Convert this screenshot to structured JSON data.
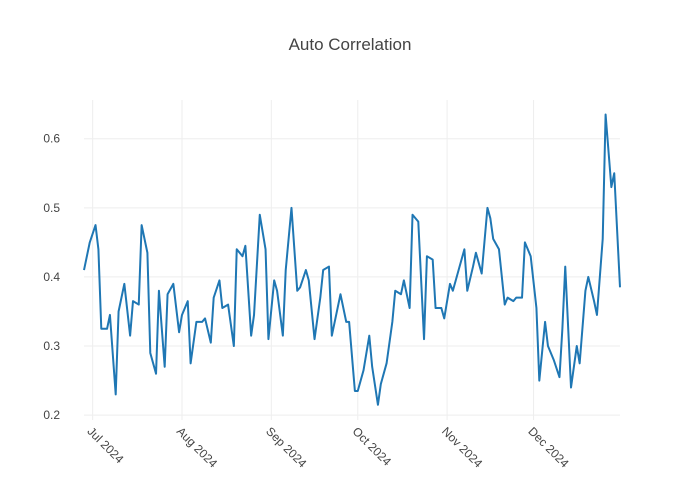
{
  "chart_data": {
    "type": "line",
    "title": "Auto Correlation",
    "x": [
      "2024-06-28",
      "2024-06-30",
      "2024-07-02",
      "2024-07-03",
      "2024-07-04",
      "2024-07-06",
      "2024-07-07",
      "2024-07-09",
      "2024-07-10",
      "2024-07-12",
      "2024-07-14",
      "2024-07-15",
      "2024-07-17",
      "2024-07-18",
      "2024-07-20",
      "2024-07-21",
      "2024-07-23",
      "2024-07-24",
      "2024-07-26",
      "2024-07-27",
      "2024-07-29",
      "2024-07-31",
      "2024-08-01",
      "2024-08-03",
      "2024-08-04",
      "2024-08-06",
      "2024-08-08",
      "2024-08-09",
      "2024-08-11",
      "2024-08-12",
      "2024-08-14",
      "2024-08-15",
      "2024-08-17",
      "2024-08-19",
      "2024-08-20",
      "2024-08-22",
      "2024-08-23",
      "2024-08-25",
      "2024-08-26",
      "2024-08-28",
      "2024-08-30",
      "2024-08-31",
      "2024-09-02",
      "2024-09-03",
      "2024-09-05",
      "2024-09-06",
      "2024-09-08",
      "2024-09-10",
      "2024-09-11",
      "2024-09-13",
      "2024-09-14",
      "2024-09-16",
      "2024-09-18",
      "2024-09-19",
      "2024-09-21",
      "2024-09-22",
      "2024-09-24",
      "2024-09-25",
      "2024-09-27",
      "2024-09-28",
      "2024-09-30",
      "2024-10-01",
      "2024-10-03",
      "2024-10-05",
      "2024-10-06",
      "2024-10-08",
      "2024-10-09",
      "2024-10-11",
      "2024-10-13",
      "2024-10-14",
      "2024-10-16",
      "2024-10-17",
      "2024-10-19",
      "2024-10-20",
      "2024-10-22",
      "2024-10-24",
      "2024-10-25",
      "2024-10-27",
      "2024-10-28",
      "2024-10-30",
      "2024-10-31",
      "2024-11-02",
      "2024-11-03",
      "2024-11-05",
      "2024-11-07",
      "2024-11-08",
      "2024-11-10",
      "2024-11-11",
      "2024-11-13",
      "2024-11-15",
      "2024-11-16",
      "2024-11-17",
      "2024-11-19",
      "2024-11-21",
      "2024-11-22",
      "2024-11-24",
      "2024-11-25",
      "2024-11-27",
      "2024-11-28",
      "2024-11-30",
      "2024-12-02",
      "2024-12-03",
      "2024-12-05",
      "2024-12-06",
      "2024-12-08",
      "2024-12-10",
      "2024-12-11",
      "2024-12-12",
      "2024-12-14",
      "2024-12-16",
      "2024-12-17",
      "2024-12-19",
      "2024-12-20",
      "2024-12-22",
      "2024-12-23",
      "2024-12-25",
      "2024-12-26",
      "2024-12-28",
      "2024-12-29",
      "2024-12-31"
    ],
    "series": [
      {
        "color": "#1f77b4",
        "values": [
          0.41,
          0.45,
          0.475,
          0.44,
          0.325,
          0.325,
          0.345,
          0.23,
          0.35,
          0.39,
          0.315,
          0.365,
          0.36,
          0.475,
          0.435,
          0.29,
          0.26,
          0.38,
          0.27,
          0.375,
          0.39,
          0.32,
          0.345,
          0.365,
          0.275,
          0.335,
          0.335,
          0.34,
          0.305,
          0.37,
          0.395,
          0.355,
          0.36,
          0.3,
          0.44,
          0.43,
          0.445,
          0.315,
          0.345,
          0.49,
          0.44,
          0.31,
          0.395,
          0.38,
          0.315,
          0.41,
          0.5,
          0.38,
          0.385,
          0.41,
          0.395,
          0.31,
          0.37,
          0.41,
          0.415,
          0.315,
          0.355,
          0.375,
          0.335,
          0.335,
          0.235,
          0.235,
          0.265,
          0.315,
          0.27,
          0.215,
          0.245,
          0.275,
          0.335,
          0.38,
          0.375,
          0.395,
          0.355,
          0.49,
          0.48,
          0.31,
          0.43,
          0.425,
          0.355,
          0.355,
          0.34,
          0.39,
          0.38,
          0.41,
          0.44,
          0.38,
          0.415,
          0.435,
          0.405,
          0.5,
          0.485,
          0.455,
          0.44,
          0.36,
          0.37,
          0.365,
          0.37,
          0.37,
          0.45,
          0.43,
          0.355,
          0.25,
          0.335,
          0.3,
          0.28,
          0.255,
          0.325,
          0.415,
          0.24,
          0.3,
          0.275,
          0.38,
          0.4,
          0.365,
          0.345,
          0.455,
          0.635,
          0.53,
          0.55,
          0.385
        ]
      }
    ],
    "xlim": [
      "2024-06-28",
      "2024-12-31"
    ],
    "xticks": [
      {
        "value": "2024-07-01",
        "label": "Jul 2024"
      },
      {
        "value": "2024-08-01",
        "label": "Aug 2024"
      },
      {
        "value": "2024-09-01",
        "label": "Sep 2024"
      },
      {
        "value": "2024-10-01",
        "label": "Oct 2024"
      },
      {
        "value": "2024-11-01",
        "label": "Nov 2024"
      },
      {
        "value": "2024-12-01",
        "label": "Dec 2024"
      }
    ],
    "ylim": [
      0.193,
      0.656
    ],
    "yticks": [
      0.2,
      0.3,
      0.4,
      0.5,
      0.6
    ],
    "grid": true
  }
}
